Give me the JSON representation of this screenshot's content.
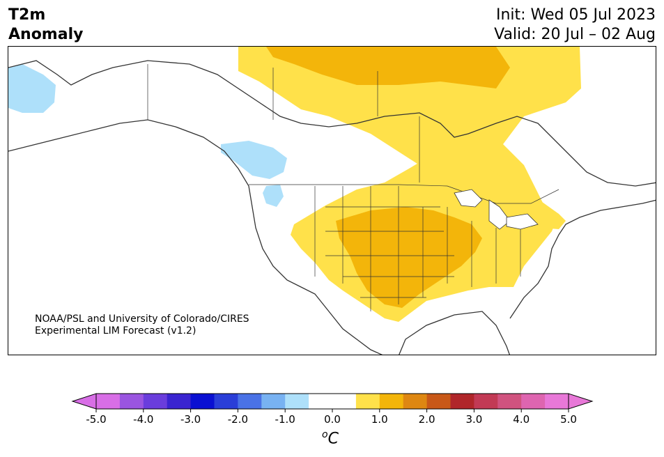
{
  "header": {
    "title_line1": "T2m",
    "title_line2": "Anomaly",
    "init": "Init: Wed 05 Jul 2023",
    "valid": "Valid: 20 Jul – 02 Aug"
  },
  "credit": {
    "line1": "NOAA/PSL and University of Colorado/CIRES",
    "line2": "Experimental LIM Forecast (v1.2)"
  },
  "colorbar": {
    "ticks": [
      "-5.0",
      "-4.0",
      "-3.0",
      "-2.0",
      "-1.0",
      "0.0",
      "1.0",
      "2.0",
      "3.0",
      "4.0",
      "5.0"
    ],
    "colors": [
      "#d86ee6",
      "#9a55e0",
      "#6a3ddc",
      "#3a24d0",
      "#0a10d2",
      "#2a3ed8",
      "#4a72e6",
      "#78b2f2",
      "#aee0fa",
      "#ffffff",
      "#ffffff",
      "#ffe14a",
      "#f3b50a",
      "#de8712",
      "#c85818",
      "#b0262a",
      "#c23a55",
      "#d0537f",
      "#de65b0",
      "#e878d8"
    ],
    "min_color": "#d86ee6",
    "max_color": "#e878d8",
    "unit_base": "o",
    "unit_letter": "C"
  },
  "map": {
    "colors": {
      "light_yellow": "#ffe14a",
      "gold": "#f3b50a",
      "light_blue": "#aee0fa",
      "coast": "#333333"
    }
  }
}
